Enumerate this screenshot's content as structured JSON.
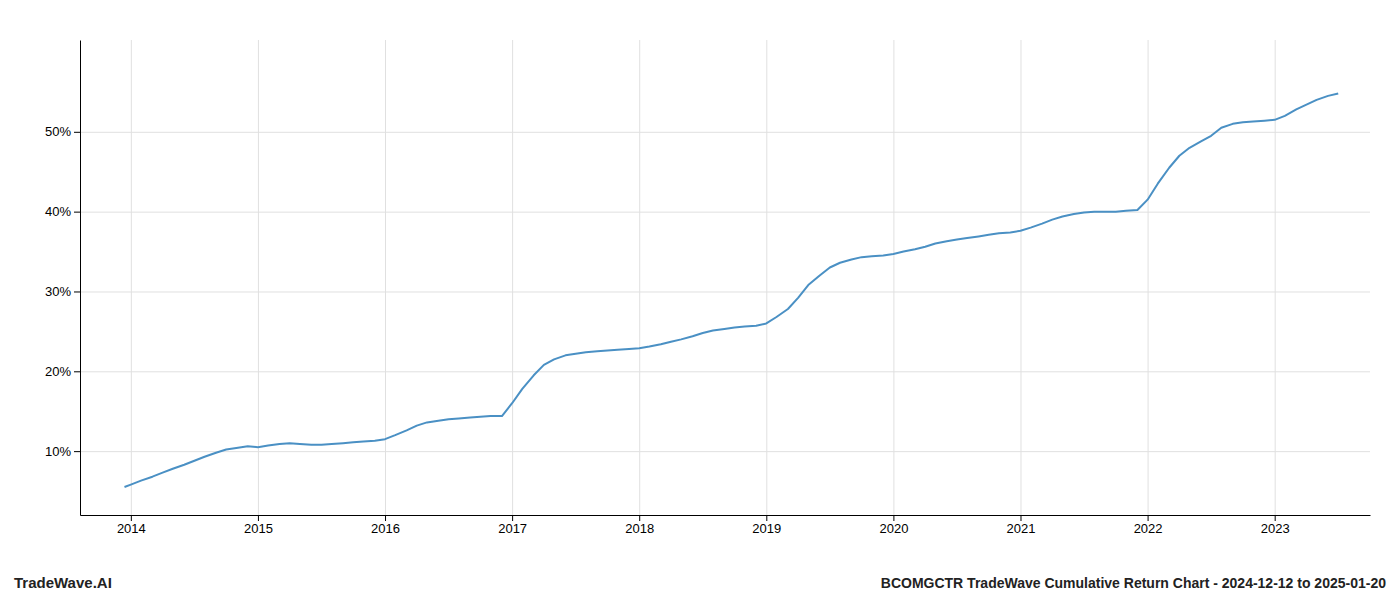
{
  "chart_data": {
    "type": "line",
    "title": "BCOMGCTR TradeWave Cumulative Return Chart - 2024-12-12 to 2025-01-20",
    "annotations": [
      "TradeWave.AI"
    ],
    "color": "#4a90c4",
    "grid": true,
    "xlim": [
      2013.6,
      2023.75
    ],
    "ylim": [
      0.02,
      0.615
    ],
    "xticks": [
      2014,
      2015,
      2016,
      2017,
      2018,
      2019,
      2020,
      2021,
      2022,
      2023
    ],
    "yticks": [
      {
        "value": 0.1,
        "label": "10%"
      },
      {
        "value": 0.2,
        "label": "20%"
      },
      {
        "value": 0.3,
        "label": "30%"
      },
      {
        "value": 0.4,
        "label": "40%"
      },
      {
        "value": 0.5,
        "label": "50%"
      }
    ],
    "x": [
      2013.95,
      2014.0,
      2014.08,
      2014.17,
      2014.25,
      2014.33,
      2014.42,
      2014.5,
      2014.58,
      2014.67,
      2014.75,
      2014.83,
      2014.92,
      2015.0,
      2015.08,
      2015.17,
      2015.25,
      2015.33,
      2015.42,
      2015.5,
      2015.58,
      2015.67,
      2015.75,
      2015.83,
      2015.92,
      2016.0,
      2016.08,
      2016.17,
      2016.25,
      2016.33,
      2016.42,
      2016.5,
      2016.58,
      2016.67,
      2016.75,
      2016.83,
      2016.92,
      2017.0,
      2017.08,
      2017.17,
      2017.25,
      2017.33,
      2017.42,
      2017.5,
      2017.58,
      2017.67,
      2017.75,
      2017.83,
      2017.92,
      2018.0,
      2018.08,
      2018.17,
      2018.25,
      2018.33,
      2018.42,
      2018.5,
      2018.58,
      2018.67,
      2018.75,
      2018.83,
      2018.92,
      2019.0,
      2019.08,
      2019.17,
      2019.25,
      2019.33,
      2019.42,
      2019.5,
      2019.58,
      2019.67,
      2019.75,
      2019.83,
      2019.92,
      2020.0,
      2020.08,
      2020.17,
      2020.25,
      2020.33,
      2020.42,
      2020.5,
      2020.58,
      2020.67,
      2020.75,
      2020.83,
      2020.92,
      2021.0,
      2021.08,
      2021.17,
      2021.25,
      2021.33,
      2021.42,
      2021.5,
      2021.58,
      2021.67,
      2021.75,
      2021.83,
      2021.92,
      2022.0,
      2022.08,
      2022.17,
      2022.25,
      2022.33,
      2022.42,
      2022.5,
      2022.58,
      2022.67,
      2022.75,
      2022.83,
      2022.92,
      2023.0,
      2023.08,
      2023.17,
      2023.25,
      2023.33,
      2023.42,
      2023.5
    ],
    "values": [
      0.055,
      0.058,
      0.063,
      0.068,
      0.073,
      0.078,
      0.083,
      0.088,
      0.093,
      0.098,
      0.102,
      0.104,
      0.106,
      0.105,
      0.107,
      0.109,
      0.11,
      0.109,
      0.108,
      0.108,
      0.109,
      0.11,
      0.111,
      0.112,
      0.113,
      0.115,
      0.12,
      0.126,
      0.132,
      0.136,
      0.138,
      0.14,
      0.141,
      0.142,
      0.143,
      0.144,
      0.144,
      0.16,
      0.178,
      0.195,
      0.208,
      0.215,
      0.22,
      0.222,
      0.224,
      0.225,
      0.226,
      0.227,
      0.228,
      0.229,
      0.231,
      0.234,
      0.237,
      0.24,
      0.244,
      0.248,
      0.251,
      0.253,
      0.255,
      0.256,
      0.257,
      0.26,
      0.268,
      0.278,
      0.292,
      0.308,
      0.32,
      0.33,
      0.336,
      0.34,
      0.343,
      0.344,
      0.345,
      0.347,
      0.35,
      0.353,
      0.356,
      0.36,
      0.363,
      0.365,
      0.367,
      0.369,
      0.371,
      0.373,
      0.374,
      0.376,
      0.38,
      0.385,
      0.39,
      0.394,
      0.397,
      0.399,
      0.4,
      0.4,
      0.4,
      0.401,
      0.402,
      0.415,
      0.435,
      0.455,
      0.47,
      0.48,
      0.488,
      0.495,
      0.505,
      0.51,
      0.512,
      0.513,
      0.514,
      0.515,
      0.52,
      0.528,
      0.534,
      0.54,
      0.545,
      0.548
    ]
  }
}
